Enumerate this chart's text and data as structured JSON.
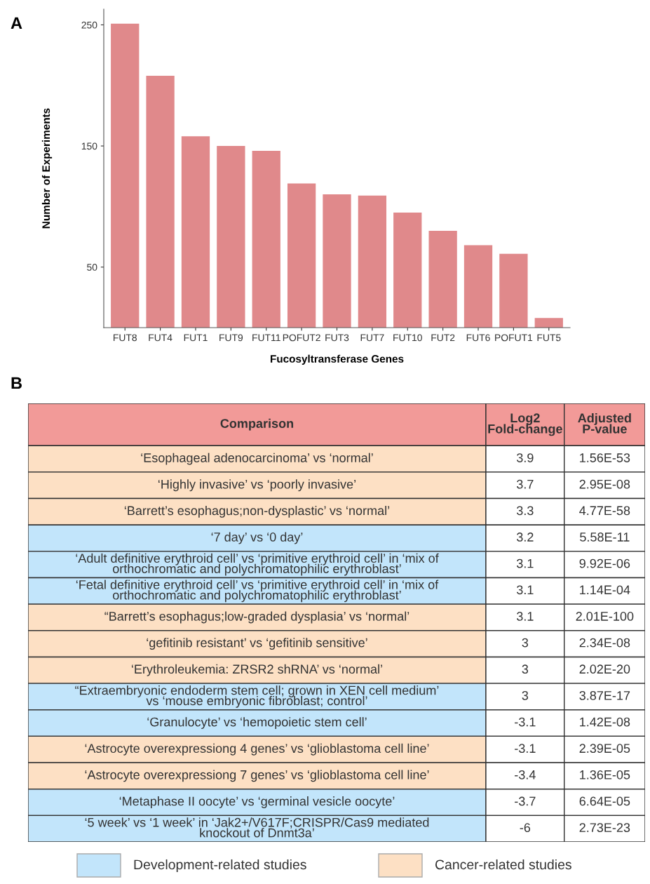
{
  "chart_data": [
    {
      "type": "bar",
      "title": "A",
      "xlabel": "Fucosyltransferase Genes",
      "ylabel": "Number of Experiments",
      "categories": [
        "FUT8",
        "FUT4",
        "FUT1",
        "FUT9",
        "FUT11",
        "POFUT2",
        "FUT3",
        "FUT7",
        "FUT10",
        "FUT2",
        "FUT6",
        "POFUT1",
        "FUT5"
      ],
      "values": [
        251,
        208,
        158,
        150,
        146,
        119,
        110,
        109,
        95,
        80,
        68,
        61,
        8
      ],
      "color": "#e0898b",
      "ylim": [
        0,
        263
      ],
      "yticks": [
        50,
        150,
        250
      ],
      "grid": false
    },
    {
      "type": "other",
      "title": "B",
      "xlabel": "Comparison",
      "color": "#f29a98",
      "categories": [
        "‘Esophageal adenocarcinoma’ vs ‘normal’",
        "‘Highly invasive’ vs ‘poorly invasive’",
        "‘Barrett’s esophagus;non-dysplastic’ vs ‘normal’",
        "‘7 day’ vs ‘0 day’",
        "‘Adult definitive erythroid cell’ vs ‘primitive erythroid cell’ in ‘mix of\northochromatic and polychromatophilic erythroblast’",
        "‘Fetal definitive erythroid cell’ vs ‘primitive erythroid cell’ in ‘mix of\northochromatic and polychromatophilic erythroblast’",
        "“Barrett’s esophagus;low-graded dysplasia’ vs ‘normal’",
        "‘gefitinib resistant’ vs ‘gefitinib sensitive’",
        "‘Erythroleukemia: ZRSR2 shRNA’ vs ‘normal’",
        "“Extraembryonic endoderm stem cell; grown in XEN cell medium’\nvs ‘mouse embryonic fibroblast; control’",
        "‘Granulocyte’ vs ‘hemopoietic stem cell’",
        "‘Astrocyte overexpressiong 4 genes’ vs ‘glioblastoma cell line’",
        "‘Astrocyte overexpressiong 7 genes’ vs ‘glioblastoma cell line’",
        "‘Metaphase II oocyte’ vs ‘germinal vesicle oocyte’",
        "‘5 week’ vs ‘1 week’ in ‘Jak2+/V617F;CRISPR/Cas9 mediated\nknockout of Dnmt3a’"
      ],
      "colors": [
        "#fde0c4",
        "#fde0c4",
        "#fde0c4",
        "#c2e5fb",
        "#c2e5fb",
        "#c2e5fb",
        "#fde0c4",
        "#fde0c4",
        "#fde0c4",
        "#c2e5fb",
        "#c2e5fb",
        "#fde0c4",
        "#fde0c4",
        "#c2e5fb",
        "#c2e5fb"
      ],
      "series": [
        {
          "name": "Log2\nFold-change",
          "color": "#ffffff",
          "values": [
            3.9,
            3.7,
            3.3,
            3.2,
            3.1,
            3.1,
            3.1,
            3,
            3,
            3,
            -3.1,
            -3.1,
            -3.4,
            -3.7,
            -6
          ]
        },
        {
          "name": "Adjusted\nP-value",
          "color": "#ffffff",
          "values": [
            1.56e-53,
            2.95e-08,
            4.77e-58,
            5.58e-11,
            9.92e-06,
            0.000114,
            2.01e-100,
            2.34e-08,
            2.02e-20,
            3.87e-17,
            1.42e-08,
            2.39e-05,
            1.36e-05,
            6.64e-05,
            2.73e-23
          ],
          "value_labels": [
            "1.56E-53",
            "2.95E-08",
            "4.77E-58",
            "5.58E-11",
            "9.92E-06",
            "1.14E-04",
            "2.01E-100",
            "2.34E-08",
            "2.02E-20",
            "3.87E-17",
            "1.42E-08",
            "2.39E-05",
            "1.36E-05",
            "6.64E-05",
            "2.73E-23"
          ]
        }
      ],
      "data_labels": true,
      "annotations": [
        "Development-related studies",
        "Cancer-related studies"
      ]
    }
  ]
}
